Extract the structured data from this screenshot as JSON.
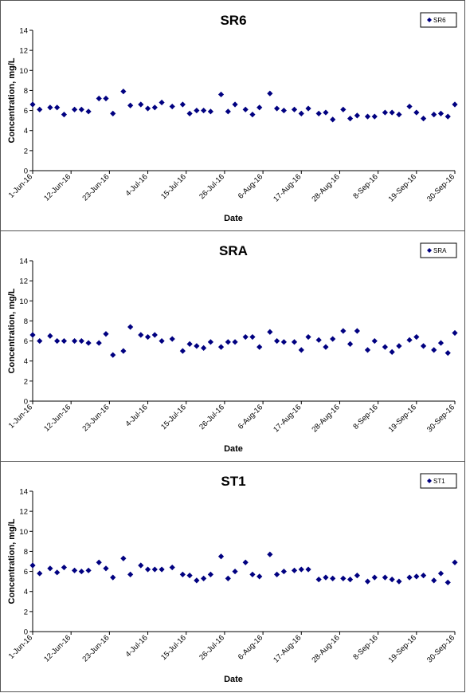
{
  "chart_data": [
    {
      "type": "scatter",
      "title": "SR6",
      "xlabel": "Date",
      "ylabel": "Concentration, mg/L",
      "ylim": [
        0,
        14
      ],
      "yticks": [
        0,
        2,
        4,
        6,
        8,
        10,
        12,
        14
      ],
      "xlim": [
        "2016-06-01",
        "2016-09-30"
      ],
      "xticks": [
        "1-Jun-16",
        "12-Jun-16",
        "23-Jun-16",
        "4-Jul-16",
        "15-Jul-16",
        "26-Jul-16",
        "6-Aug-16",
        "17-Aug-16",
        "28-Aug-16",
        "8-Sep-16",
        "19-Sep-16",
        "30-Sep-16"
      ],
      "legend": "top-right",
      "color": "#000080",
      "series": [
        {
          "name": "SR6",
          "x": [
            "2016-06-01",
            "2016-06-03",
            "2016-06-06",
            "2016-06-08",
            "2016-06-10",
            "2016-06-13",
            "2016-06-15",
            "2016-06-17",
            "2016-06-20",
            "2016-06-22",
            "2016-06-24",
            "2016-06-27",
            "2016-06-29",
            "2016-07-02",
            "2016-07-04",
            "2016-07-06",
            "2016-07-08",
            "2016-07-11",
            "2016-07-14",
            "2016-07-16",
            "2016-07-18",
            "2016-07-20",
            "2016-07-22",
            "2016-07-25",
            "2016-07-27",
            "2016-07-29",
            "2016-08-01",
            "2016-08-03",
            "2016-08-05",
            "2016-08-08",
            "2016-08-10",
            "2016-08-12",
            "2016-08-15",
            "2016-08-17",
            "2016-08-19",
            "2016-08-22",
            "2016-08-24",
            "2016-08-26",
            "2016-08-29",
            "2016-08-31",
            "2016-09-02",
            "2016-09-05",
            "2016-09-07",
            "2016-09-10",
            "2016-09-12",
            "2016-09-14",
            "2016-09-17",
            "2016-09-19",
            "2016-09-21",
            "2016-09-24",
            "2016-09-26",
            "2016-09-28",
            "2016-09-30"
          ],
          "values": [
            6.6,
            6.1,
            6.3,
            6.3,
            5.6,
            6.1,
            6.1,
            5.9,
            7.2,
            7.2,
            5.7,
            7.9,
            6.5,
            6.6,
            6.2,
            6.3,
            6.8,
            6.4,
            6.6,
            5.7,
            6.0,
            6.0,
            5.9,
            7.6,
            5.9,
            6.6,
            6.1,
            5.6,
            6.3,
            7.7,
            6.2,
            6.0,
            6.1,
            5.7,
            6.2,
            5.7,
            5.8,
            5.1,
            6.1,
            5.2,
            5.5,
            5.4,
            5.4,
            5.8,
            5.8,
            5.6,
            6.4,
            5.8,
            5.2,
            5.6,
            5.7,
            5.4,
            6.6
          ]
        }
      ]
    },
    {
      "type": "scatter",
      "title": "SRA",
      "xlabel": "Date",
      "ylabel": "Concentration, mg/L",
      "ylim": [
        0,
        14
      ],
      "yticks": [
        0,
        2,
        4,
        6,
        8,
        10,
        12,
        14
      ],
      "xlim": [
        "2016-06-01",
        "2016-09-30"
      ],
      "xticks": [
        "1-Jun-16",
        "12-Jun-16",
        "23-Jun-16",
        "4-Jul-16",
        "15-Jul-16",
        "26-Jul-16",
        "6-Aug-16",
        "17-Aug-16",
        "28-Aug-16",
        "8-Sep-16",
        "19-Sep-16",
        "30-Sep-16"
      ],
      "legend": "top-right",
      "color": "#000080",
      "series": [
        {
          "name": "SRA",
          "x": [
            "2016-06-01",
            "2016-06-03",
            "2016-06-06",
            "2016-06-08",
            "2016-06-10",
            "2016-06-13",
            "2016-06-15",
            "2016-06-17",
            "2016-06-20",
            "2016-06-22",
            "2016-06-24",
            "2016-06-27",
            "2016-06-29",
            "2016-07-02",
            "2016-07-04",
            "2016-07-06",
            "2016-07-08",
            "2016-07-11",
            "2016-07-14",
            "2016-07-16",
            "2016-07-18",
            "2016-07-20",
            "2016-07-22",
            "2016-07-25",
            "2016-07-27",
            "2016-07-29",
            "2016-08-01",
            "2016-08-03",
            "2016-08-05",
            "2016-08-08",
            "2016-08-10",
            "2016-08-12",
            "2016-08-15",
            "2016-08-17",
            "2016-08-19",
            "2016-08-22",
            "2016-08-24",
            "2016-08-26",
            "2016-08-29",
            "2016-08-31",
            "2016-09-02",
            "2016-09-05",
            "2016-09-07",
            "2016-09-10",
            "2016-09-12",
            "2016-09-14",
            "2016-09-17",
            "2016-09-19",
            "2016-09-21",
            "2016-09-24",
            "2016-09-26",
            "2016-09-28",
            "2016-09-30"
          ],
          "values": [
            6.6,
            6.0,
            6.5,
            6.0,
            6.0,
            6.0,
            6.0,
            5.8,
            5.8,
            6.7,
            4.6,
            5.0,
            7.4,
            6.6,
            6.4,
            6.6,
            6.0,
            6.2,
            5.0,
            5.7,
            5.5,
            5.3,
            5.9,
            5.4,
            5.9,
            5.9,
            6.4,
            6.4,
            5.4,
            6.9,
            6.0,
            5.9,
            5.9,
            5.1,
            6.4,
            6.1,
            5.4,
            6.2,
            7.0,
            5.7,
            7.0,
            5.1,
            6.0,
            5.4,
            4.9,
            5.5,
            6.1,
            6.4,
            5.5,
            5.1,
            5.8,
            4.8,
            6.8
          ]
        }
      ]
    },
    {
      "type": "scatter",
      "title": "ST1",
      "xlabel": "Date",
      "ylabel": "Concentration, mg/L",
      "ylim": [
        0,
        14
      ],
      "yticks": [
        0,
        2,
        4,
        6,
        8,
        10,
        12,
        14
      ],
      "xlim": [
        "2016-06-01",
        "2016-09-30"
      ],
      "xticks": [
        "1-Jun-16",
        "12-Jun-16",
        "23-Jun-16",
        "4-Jul-16",
        "15-Jul-16",
        "26-Jul-16",
        "6-Aug-16",
        "17-Aug-16",
        "28-Aug-16",
        "8-Sep-16",
        "19-Sep-16",
        "30-Sep-16"
      ],
      "legend": "top-right",
      "color": "#000080",
      "series": [
        {
          "name": "ST1",
          "x": [
            "2016-06-01",
            "2016-06-03",
            "2016-06-06",
            "2016-06-08",
            "2016-06-10",
            "2016-06-13",
            "2016-06-15",
            "2016-06-17",
            "2016-06-20",
            "2016-06-22",
            "2016-06-24",
            "2016-06-27",
            "2016-06-29",
            "2016-07-02",
            "2016-07-04",
            "2016-07-06",
            "2016-07-08",
            "2016-07-11",
            "2016-07-14",
            "2016-07-16",
            "2016-07-18",
            "2016-07-20",
            "2016-07-22",
            "2016-07-25",
            "2016-07-27",
            "2016-07-29",
            "2016-08-01",
            "2016-08-03",
            "2016-08-05",
            "2016-08-08",
            "2016-08-10",
            "2016-08-12",
            "2016-08-15",
            "2016-08-17",
            "2016-08-19",
            "2016-08-22",
            "2016-08-24",
            "2016-08-26",
            "2016-08-29",
            "2016-08-31",
            "2016-09-02",
            "2016-09-05",
            "2016-09-07",
            "2016-09-10",
            "2016-09-12",
            "2016-09-14",
            "2016-09-17",
            "2016-09-19",
            "2016-09-21",
            "2016-09-24",
            "2016-09-26",
            "2016-09-28",
            "2016-09-30"
          ],
          "values": [
            6.6,
            5.8,
            6.3,
            5.9,
            6.4,
            6.1,
            6.0,
            6.1,
            6.9,
            6.3,
            5.4,
            7.3,
            5.7,
            6.6,
            6.2,
            6.2,
            6.2,
            6.4,
            5.7,
            5.6,
            5.1,
            5.3,
            5.7,
            7.5,
            5.3,
            6.0,
            6.9,
            5.7,
            5.5,
            7.7,
            5.7,
            6.0,
            6.1,
            6.2,
            6.2,
            5.2,
            5.4,
            5.3,
            5.3,
            5.2,
            5.6,
            5.0,
            5.4,
            5.4,
            5.2,
            5.0,
            5.4,
            5.5,
            5.6,
            5.1,
            5.8,
            4.9,
            6.9
          ]
        }
      ]
    }
  ]
}
